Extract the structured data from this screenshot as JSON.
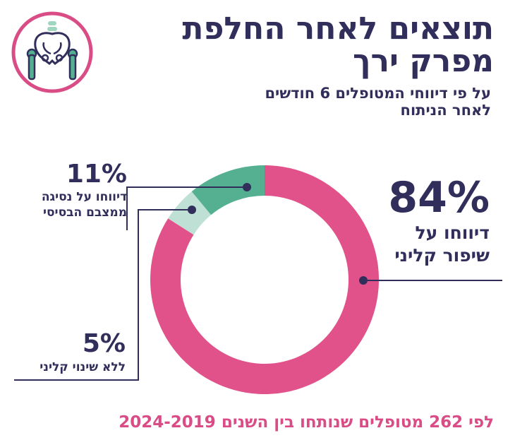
{
  "title_line1": "תוצאים לאחר החלפת",
  "title_line2": "מפרק ירך",
  "subtitle_line1": "על פי דיווחי המטופלים 6 חודשים",
  "subtitle_line2": "לאחר הניתוח",
  "footer": "לפי 262 מטופלים שנותחו בין השנים 2024-2019",
  "icon": "pelvis-hip-icon",
  "colors": {
    "improved": "#e2528a",
    "declined": "#55b092",
    "no_change": "#bfe0d4",
    "text": "#312e5b",
    "footer": "#d94c86"
  },
  "chart_data": {
    "type": "pie",
    "donut": true,
    "title": "תוצאים לאחר החלפת מפרק ירך",
    "slices": [
      {
        "label_line1": "דיווחו על",
        "label_line2": "שיפור קליני",
        "value": 84,
        "value_text": "84%",
        "color": "#e2528a"
      },
      {
        "label_line1": "ללא שינוי קליני",
        "label_line2": "",
        "value": 5,
        "value_text": "5%",
        "color": "#bfe0d4"
      },
      {
        "label_line1": "דיווחו על נסיגה",
        "label_line2": "ממצבם הבסיסי",
        "value": 11,
        "value_text": "11%",
        "color": "#55b092"
      }
    ]
  }
}
